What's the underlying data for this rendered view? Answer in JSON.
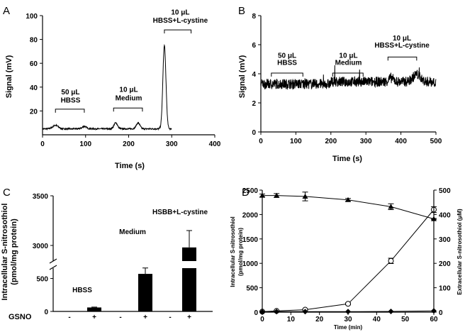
{
  "figure": {
    "panels": [
      "A",
      "B",
      "C",
      "D"
    ]
  },
  "chart_data": [
    {
      "panel": "A",
      "type": "line",
      "xlabel": "Time (s)",
      "ylabel": "Signal (mV)",
      "xlim": [
        0,
        400
      ],
      "ylim": [
        0,
        100
      ],
      "xticks": [
        0,
        100,
        200,
        300,
        400
      ],
      "yticks": [
        20,
        40,
        60,
        80,
        100
      ],
      "baseline": 5,
      "peaks": [
        {
          "x": 30,
          "y": 8
        },
        {
          "x": 97,
          "y": 7
        },
        {
          "x": 170,
          "y": 10
        },
        {
          "x": 222,
          "y": 10
        },
        {
          "x": 283,
          "y": 75
        },
        {
          "x": 343,
          "y": 87
        }
      ],
      "annotations": [
        {
          "text": "50 μL",
          "x": 65,
          "y": 34
        },
        {
          "text": "HBSS",
          "x": 65,
          "y": 27
        },
        {
          "text": "10 μL",
          "x": 200,
          "y": 36
        },
        {
          "text": "Medium",
          "x": 200,
          "y": 29
        },
        {
          "text": "10 μL",
          "x": 320,
          "y": 101
        },
        {
          "text": "HBSS+L-cystine",
          "x": 320,
          "y": 94
        }
      ],
      "brackets": [
        [
          30,
          97,
          21.5
        ],
        [
          165,
          232,
          22.5
        ],
        [
          283,
          345,
          88
        ]
      ]
    },
    {
      "panel": "B",
      "type": "line",
      "xlabel": "Time (s)",
      "ylabel": "Signal (mV)",
      "xlim": [
        0,
        500
      ],
      "ylim": [
        0,
        8
      ],
      "xticks": [
        0,
        100,
        200,
        300,
        400,
        500
      ],
      "yticks": [
        0,
        2,
        4,
        6,
        8
      ],
      "baseline": 3.3,
      "annotations": [
        {
          "text": "50 μL",
          "x": 75,
          "y": 5.1
        },
        {
          "text": "HBSS",
          "x": 75,
          "y": 4.6
        },
        {
          "text": "10 μL",
          "x": 250,
          "y": 5.1
        },
        {
          "text": "Medium",
          "x": 250,
          "y": 4.6
        },
        {
          "text": "10 μL",
          "x": 403,
          "y": 6.3
        },
        {
          "text": "HBSS+L-cystine",
          "x": 403,
          "y": 5.8
        }
      ],
      "brackets": [
        [
          30,
          120,
          4.05
        ],
        [
          205,
          292,
          4.05
        ],
        [
          363,
          445,
          5.15
        ]
      ]
    },
    {
      "panel": "C",
      "type": "bar",
      "ylabel": [
        "Intracellular S-nitrosothiol",
        "(pmol/mg protein)"
      ],
      "yticks": [
        "0",
        "500",
        "3000",
        "3500"
      ],
      "xlabel": "GSNO",
      "categories": [
        "-",
        "+",
        "-",
        "+",
        "-",
        "+"
      ],
      "values": [
        4,
        60,
        5,
        570,
        5,
        2980
      ],
      "errors": [
        0,
        6,
        0,
        90,
        0,
        170
      ],
      "groups": [
        "HBSS",
        "Medium",
        "HSBB+L-cystine"
      ],
      "axis_break": [
        700,
        2800
      ]
    },
    {
      "panel": "D",
      "type": "line",
      "xlabel": "Time (min)",
      "ylabel_left": [
        "Intracellular S-nitrosothiol",
        "(pmol/mg protein)"
      ],
      "ylabel_right": "Extracellular S-nitrosothiol (μM)",
      "xlim": [
        0,
        60
      ],
      "ylim_left": [
        0,
        2500
      ],
      "ylim_right": [
        0,
        500
      ],
      "xticks": [
        0,
        10,
        20,
        30,
        40,
        50,
        60
      ],
      "yticks_left": [
        0,
        500,
        1000,
        1500,
        2000,
        2500
      ],
      "yticks_right": [
        0,
        100,
        200,
        300,
        400,
        500
      ],
      "series": [
        {
          "marker": "triangle",
          "axis": "left",
          "x": [
            0,
            5,
            15,
            30,
            45,
            60
          ],
          "y": [
            2390,
            2390,
            2370,
            2300,
            2160,
            1910
          ],
          "err": [
            30,
            40,
            90,
            30,
            60,
            10
          ]
        },
        {
          "marker": "circle-open",
          "axis": "left",
          "x": [
            0,
            5,
            15,
            30,
            45,
            60
          ],
          "y": [
            10,
            25,
            50,
            170,
            1050,
            2100
          ],
          "err": [
            0,
            10,
            15,
            20,
            55,
            60
          ]
        },
        {
          "marker": "diamond",
          "axis": "right",
          "x": [
            0,
            5,
            15,
            30,
            45,
            60
          ],
          "y": [
            1,
            2,
            2,
            2,
            3,
            5
          ],
          "err": [
            0,
            0,
            0,
            0,
            0,
            0
          ]
        }
      ]
    }
  ]
}
